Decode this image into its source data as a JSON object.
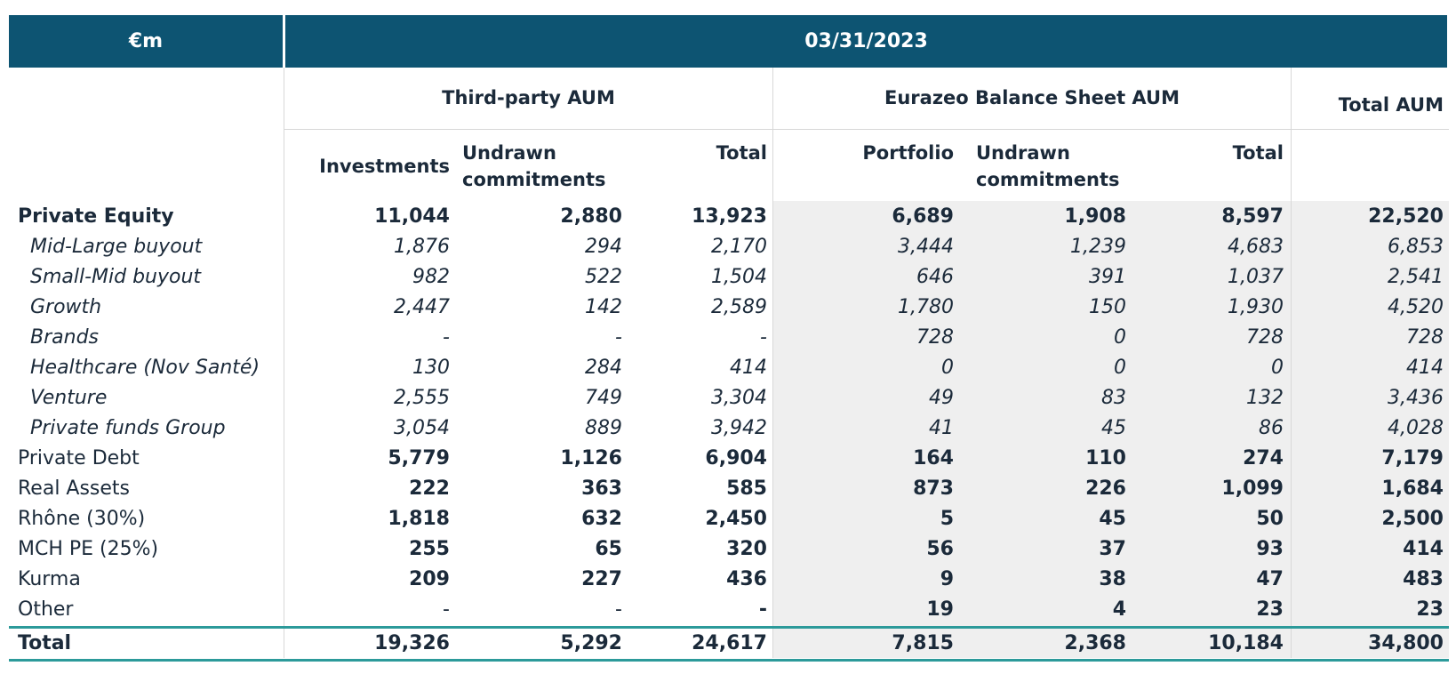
{
  "header": {
    "unit": "€m",
    "date": "03/31/2023"
  },
  "groups": {
    "third_party": "Third-party AUM",
    "balance_sheet": "Eurazeo Balance Sheet AUM",
    "total": "Total AUM"
  },
  "subheaders": {
    "investments": "Investments",
    "undrawn_tp": "Undrawn commitments",
    "total_tp": "Total",
    "portfolio": "Portfolio",
    "undrawn_bs": "Undrawn commitments",
    "total_bs": "Total"
  },
  "rows": [
    {
      "label": "Private Equity",
      "values": [
        "11,044",
        "2,880",
        "13,923",
        "6,689",
        "1,908",
        "8,597",
        "22,520"
      ]
    },
    {
      "label": "Mid-Large buyout",
      "values": [
        "1,876",
        "294",
        "2,170",
        "3,444",
        "1,239",
        "4,683",
        "6,853"
      ]
    },
    {
      "label": "Small-Mid buyout",
      "values": [
        "982",
        "522",
        "1,504",
        "646",
        "391",
        "1,037",
        "2,541"
      ]
    },
    {
      "label": "Growth",
      "values": [
        "2,447",
        "142",
        "2,589",
        "1,780",
        "150",
        "1,930",
        "4,520"
      ]
    },
    {
      "label": "Brands",
      "values": [
        "-",
        "-",
        "-",
        "728",
        "0",
        "728",
        "728"
      ]
    },
    {
      "label": "Healthcare (Nov Santé)",
      "values": [
        "130",
        "284",
        "414",
        "0",
        "0",
        "0",
        "414"
      ]
    },
    {
      "label": "Venture",
      "values": [
        "2,555",
        "749",
        "3,304",
        "49",
        "83",
        "132",
        "3,436"
      ]
    },
    {
      "label": "Private funds Group",
      "values": [
        "3,054",
        "889",
        "3,942",
        "41",
        "45",
        "86",
        "4,028"
      ]
    },
    {
      "label": "Private Debt",
      "values": [
        "5,779",
        "1,126",
        "6,904",
        "164",
        "110",
        "274",
        "7,179"
      ]
    },
    {
      "label": "Real Assets",
      "values": [
        "222",
        "363",
        "585",
        "873",
        "226",
        "1,099",
        "1,684"
      ]
    },
    {
      "label": "Rhône (30%)",
      "values": [
        "1,818",
        "632",
        "2,450",
        "5",
        "45",
        "50",
        "2,500"
      ]
    },
    {
      "label": "MCH PE (25%)",
      "values": [
        "255",
        "65",
        "320",
        "56",
        "37",
        "93",
        "414"
      ]
    },
    {
      "label": "Kurma",
      "values": [
        "209",
        "227",
        "436",
        "9",
        "38",
        "47",
        "483"
      ]
    },
    {
      "label": "Other",
      "values": [
        "-",
        "-",
        "-",
        "19",
        "4",
        "23",
        "23"
      ]
    },
    {
      "label": "Total",
      "values": [
        "19,326",
        "5,292",
        "24,617",
        "7,815",
        "2,368",
        "10,184",
        "34,800"
      ]
    }
  ]
}
